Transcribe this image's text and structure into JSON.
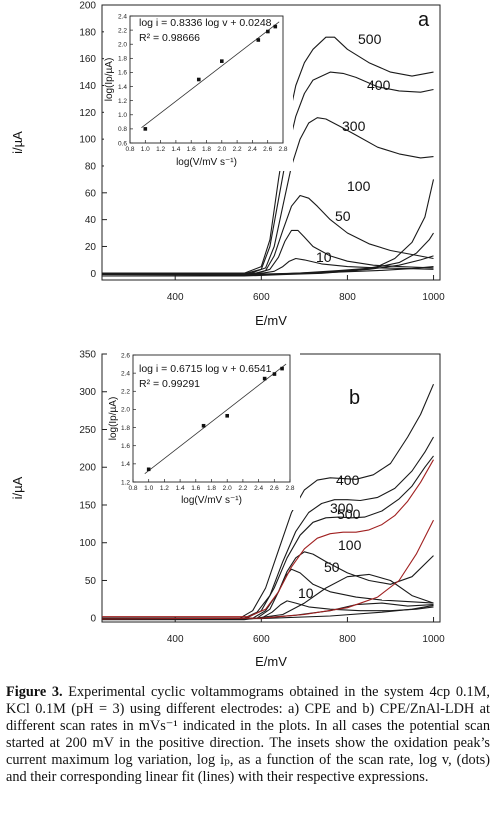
{
  "chart_data": [
    {
      "type": "line",
      "panel_label": "a",
      "xlabel": "E/mV",
      "ylabel": "i/µA",
      "xlim": [
        230,
        1015
      ],
      "ylim": [
        -5,
        200
      ],
      "xticks": [
        "400",
        "600",
        "800",
        "1000"
      ],
      "yticks": [
        "0",
        "20",
        "40",
        "60",
        "80",
        "100",
        "120",
        "140",
        "160",
        "180",
        "200"
      ],
      "curve_labels": [
        "500",
        "400",
        "300",
        "100",
        "50",
        "10"
      ],
      "series": [
        {
          "name": "500",
          "x": [
            230,
            560,
            600,
            620,
            640,
            660,
            680,
            700,
            720,
            750,
            770,
            800,
            850,
            900,
            950,
            1000
          ],
          "y": [
            0,
            0,
            5,
            25,
            70,
            110,
            140,
            157,
            167,
            176,
            176,
            167,
            157,
            150,
            147,
            150
          ]
        },
        {
          "name": "400",
          "x": [
            230,
            565,
            600,
            620,
            640,
            660,
            680,
            700,
            720,
            760,
            790,
            820,
            870,
            920,
            970,
            1000
          ],
          "y": [
            0,
            0,
            3,
            20,
            55,
            90,
            117,
            134,
            144,
            150,
            149,
            146,
            139,
            136,
            135,
            137
          ]
        },
        {
          "name": "300",
          "x": [
            230,
            575,
            610,
            630,
            650,
            670,
            690,
            710,
            730,
            750,
            780,
            820,
            870,
            920,
            970,
            1000
          ],
          "y": [
            0,
            0,
            4,
            20,
            50,
            80,
            100,
            112,
            116,
            115,
            110,
            103,
            94,
            89,
            86,
            87
          ]
        },
        {
          "name": "100",
          "x": [
            230,
            585,
            610,
            630,
            650,
            670,
            690,
            710,
            730,
            760,
            800,
            850,
            900,
            950,
            1000
          ],
          "y": [
            0,
            0,
            2,
            13,
            32,
            50,
            58,
            56,
            50,
            40,
            30,
            22,
            17,
            14,
            11
          ]
        },
        {
          "name": "50",
          "x": [
            230,
            590,
            620,
            640,
            655,
            670,
            685,
            700,
            720,
            760,
            800,
            860,
            920,
            1000
          ],
          "y": [
            0,
            0,
            3,
            12,
            24,
            32,
            32,
            27,
            20,
            13,
            9,
            6,
            5,
            4
          ]
        },
        {
          "name": "10",
          "x": [
            230,
            600,
            630,
            650,
            665,
            680,
            700,
            740,
            800,
            870,
            940,
            1000
          ],
          "y": [
            0,
            0,
            1.5,
            5,
            9,
            11,
            10,
            7,
            5,
            4,
            3.5,
            3
          ]
        },
        {
          "name": "",
          "x": [
            230,
            560,
            650,
            740,
            820,
            870,
            910,
            950,
            980,
            1000
          ],
          "y": [
            -2,
            -2,
            -1,
            0,
            2,
            5,
            11,
            23,
            42,
            70
          ]
        },
        {
          "name": "",
          "x": [
            230,
            580,
            680,
            780,
            860,
            920,
            960,
            990,
            1000
          ],
          "y": [
            -2,
            -1.5,
            0,
            2,
            4,
            8,
            15,
            25,
            30
          ]
        },
        {
          "name": "",
          "x": [
            230,
            600,
            750,
            850,
            920,
            970,
            1000
          ],
          "y": [
            -1,
            -1,
            1,
            3,
            6,
            10,
            13
          ]
        },
        {
          "name": "",
          "x": [
            230,
            600,
            750,
            870,
            950,
            1000
          ],
          "y": [
            -0.5,
            -0.5,
            0.5,
            2,
            3.5,
            5
          ]
        }
      ],
      "inset": {
        "equation": "log i = 0.8336 log v + 0.0248",
        "r2": "R² = 0.98666",
        "xlabel": "log(V/mV s⁻¹)",
        "ylabel": "log(Ip/µA)",
        "xlim": [
          0.8,
          2.8
        ],
        "ylim": [
          0.6,
          2.4
        ],
        "xticks": [
          "0.8",
          "1.0",
          "1.2",
          "1.4",
          "1.6",
          "1.8",
          "2.0",
          "2.2",
          "2.4",
          "2.6",
          "2.8"
        ],
        "yticks": [
          "0.6",
          "0.8",
          "1.0",
          "1.2",
          "1.4",
          "1.6",
          "1.8",
          "2.0",
          "2.2",
          "2.4"
        ],
        "points_x": [
          1.0,
          1.699,
          2.0,
          2.477,
          2.602,
          2.699
        ],
        "points_y": [
          0.8,
          1.5,
          1.76,
          2.06,
          2.18,
          2.25
        ],
        "fit": {
          "slope": 0.8336,
          "intercept": 0.0248,
          "x_range": [
            0.95,
            2.75
          ]
        }
      }
    },
    {
      "type": "line",
      "panel_label": "b",
      "xlabel": "E/mV",
      "ylabel": "i/µA",
      "xlim": [
        230,
        1015
      ],
      "ylim": [
        -5,
        350
      ],
      "xticks": [
        "400",
        "600",
        "800",
        "1000"
      ],
      "yticks": [
        "0",
        "50",
        "100",
        "150",
        "200",
        "250",
        "300",
        "350"
      ],
      "curve_labels": [
        "500",
        "400",
        "300",
        "100",
        "50",
        "10"
      ],
      "series": [
        {
          "name": "500",
          "x": [
            230,
            550,
            580,
            610,
            640,
            670,
            700,
            730,
            760,
            790,
            820,
            860,
            900,
            940,
            970,
            1000
          ],
          "y": [
            0,
            0,
            10,
            40,
            90,
            140,
            170,
            183,
            186,
            185,
            184,
            190,
            205,
            240,
            270,
            310
          ]
        },
        {
          "name": "400",
          "x": [
            230,
            560,
            590,
            620,
            650,
            680,
            710,
            740,
            770,
            800,
            830,
            870,
            910,
            950,
            980,
            1000
          ],
          "y": [
            0,
            0,
            8,
            30,
            75,
            115,
            140,
            152,
            157,
            157,
            156,
            160,
            172,
            195,
            220,
            240
          ]
        },
        {
          "name": "300",
          "x": [
            230,
            565,
            600,
            630,
            660,
            690,
            720,
            750,
            780,
            810,
            840,
            880,
            920,
            950,
            980,
            1000
          ],
          "y": [
            0,
            0,
            10,
            40,
            80,
            110,
            127,
            133,
            134,
            133,
            134,
            142,
            158,
            175,
            200,
            215
          ]
        },
        {
          "name": "100",
          "x": [
            230,
            580,
            610,
            640,
            660,
            680,
            700,
            720,
            750,
            800,
            850,
            900,
            950,
            1000
          ],
          "y": [
            0,
            0,
            10,
            35,
            62,
            80,
            88,
            85,
            75,
            60,
            50,
            45,
            55,
            83
          ]
        },
        {
          "name": "50",
          "x": [
            230,
            590,
            620,
            640,
            655,
            670,
            690,
            720,
            760,
            820,
            880,
            940,
            1000
          ],
          "y": [
            0,
            0,
            12,
            35,
            55,
            65,
            60,
            45,
            35,
            28,
            24,
            22,
            20
          ]
        },
        {
          "name": "10",
          "x": [
            230,
            600,
            625,
            645,
            660,
            680,
            710,
            760,
            830,
            900,
            960,
            1000
          ],
          "y": [
            0,
            0,
            8,
            18,
            23,
            20,
            15,
            12,
            10,
            10,
            12,
            15
          ]
        },
        {
          "name": "",
          "x": [
            230,
            560,
            650,
            700,
            750,
            800,
            850,
            900,
            950,
            1000
          ],
          "y": [
            -2,
            -2,
            5,
            20,
            40,
            55,
            58,
            50,
            30,
            20
          ]
        },
        {
          "name": "",
          "x": [
            230,
            570,
            680,
            760,
            820,
            880,
            940,
            1000
          ],
          "y": [
            -1,
            -1,
            4,
            10,
            18,
            20,
            16,
            18
          ]
        },
        {
          "name": "",
          "x": [
            230,
            600,
            760,
            880,
            950,
            1000
          ],
          "y": [
            -0.5,
            -0.5,
            3,
            8,
            12,
            17
          ]
        }
      ],
      "red_curve": {
        "x": [
          230,
          570,
          610,
          640,
          670,
          700,
          730,
          760,
          790,
          820,
          850,
          880,
          910,
          940,
          970,
          1000
        ],
        "y": [
          2,
          2,
          12,
          35,
          68,
          92,
          106,
          112,
          114,
          114,
          117,
          124,
          136,
          155,
          180,
          210
        ],
        "color": "#a02020"
      },
      "red_curve_return": {
        "x": [
          230,
          600,
          700,
          800,
          870,
          920,
          960,
          1000
        ],
        "y": [
          -1,
          0,
          5,
          14,
          28,
          50,
          85,
          130
        ],
        "color": "#a02020"
      },
      "inset": {
        "equation": "log i = 0.6715 log v + 0.6541",
        "r2": "R² = 0.99291",
        "xlabel": "log(V/mV s⁻¹)",
        "ylabel": "log(Ip/µA)",
        "xlim": [
          0.8,
          2.8
        ],
        "ylim": [
          1.2,
          2.6
        ],
        "xticks": [
          "0.8",
          "1.0",
          "1.2",
          "1.4",
          "1.6",
          "1.8",
          "2.0",
          "2.2",
          "2.4",
          "2.6",
          "2.8"
        ],
        "yticks": [
          "1.2",
          "1.4",
          "1.6",
          "1.8",
          "2.0",
          "2.2",
          "2.4",
          "2.6"
        ],
        "points_x": [
          1.0,
          1.699,
          2.0,
          2.477,
          2.602,
          2.699
        ],
        "points_y": [
          1.34,
          1.82,
          1.93,
          2.34,
          2.39,
          2.45
        ],
        "fit": {
          "slope": 0.6715,
          "intercept": 0.6541,
          "x_range": [
            0.95,
            2.75
          ]
        }
      }
    }
  ],
  "caption": {
    "label": "Figure 3.",
    "text": " Experimental cyclic voltammograms obtained in the system 4cp 0.1M, KCl 0.1M (pH = 3) using different electrodes: a) CPE and b) CPE/ZnAl-LDH at different scan rates in mVs⁻¹ indicated in the plots. In all cases the potential scan started at 200 mV in the positive direction. The insets show the oxidation peak’s current maximum log variation, log iₚ, as a function of the scan rate, log v, (dots) and their corresponding linear fit (lines) with their respective expressions."
  }
}
